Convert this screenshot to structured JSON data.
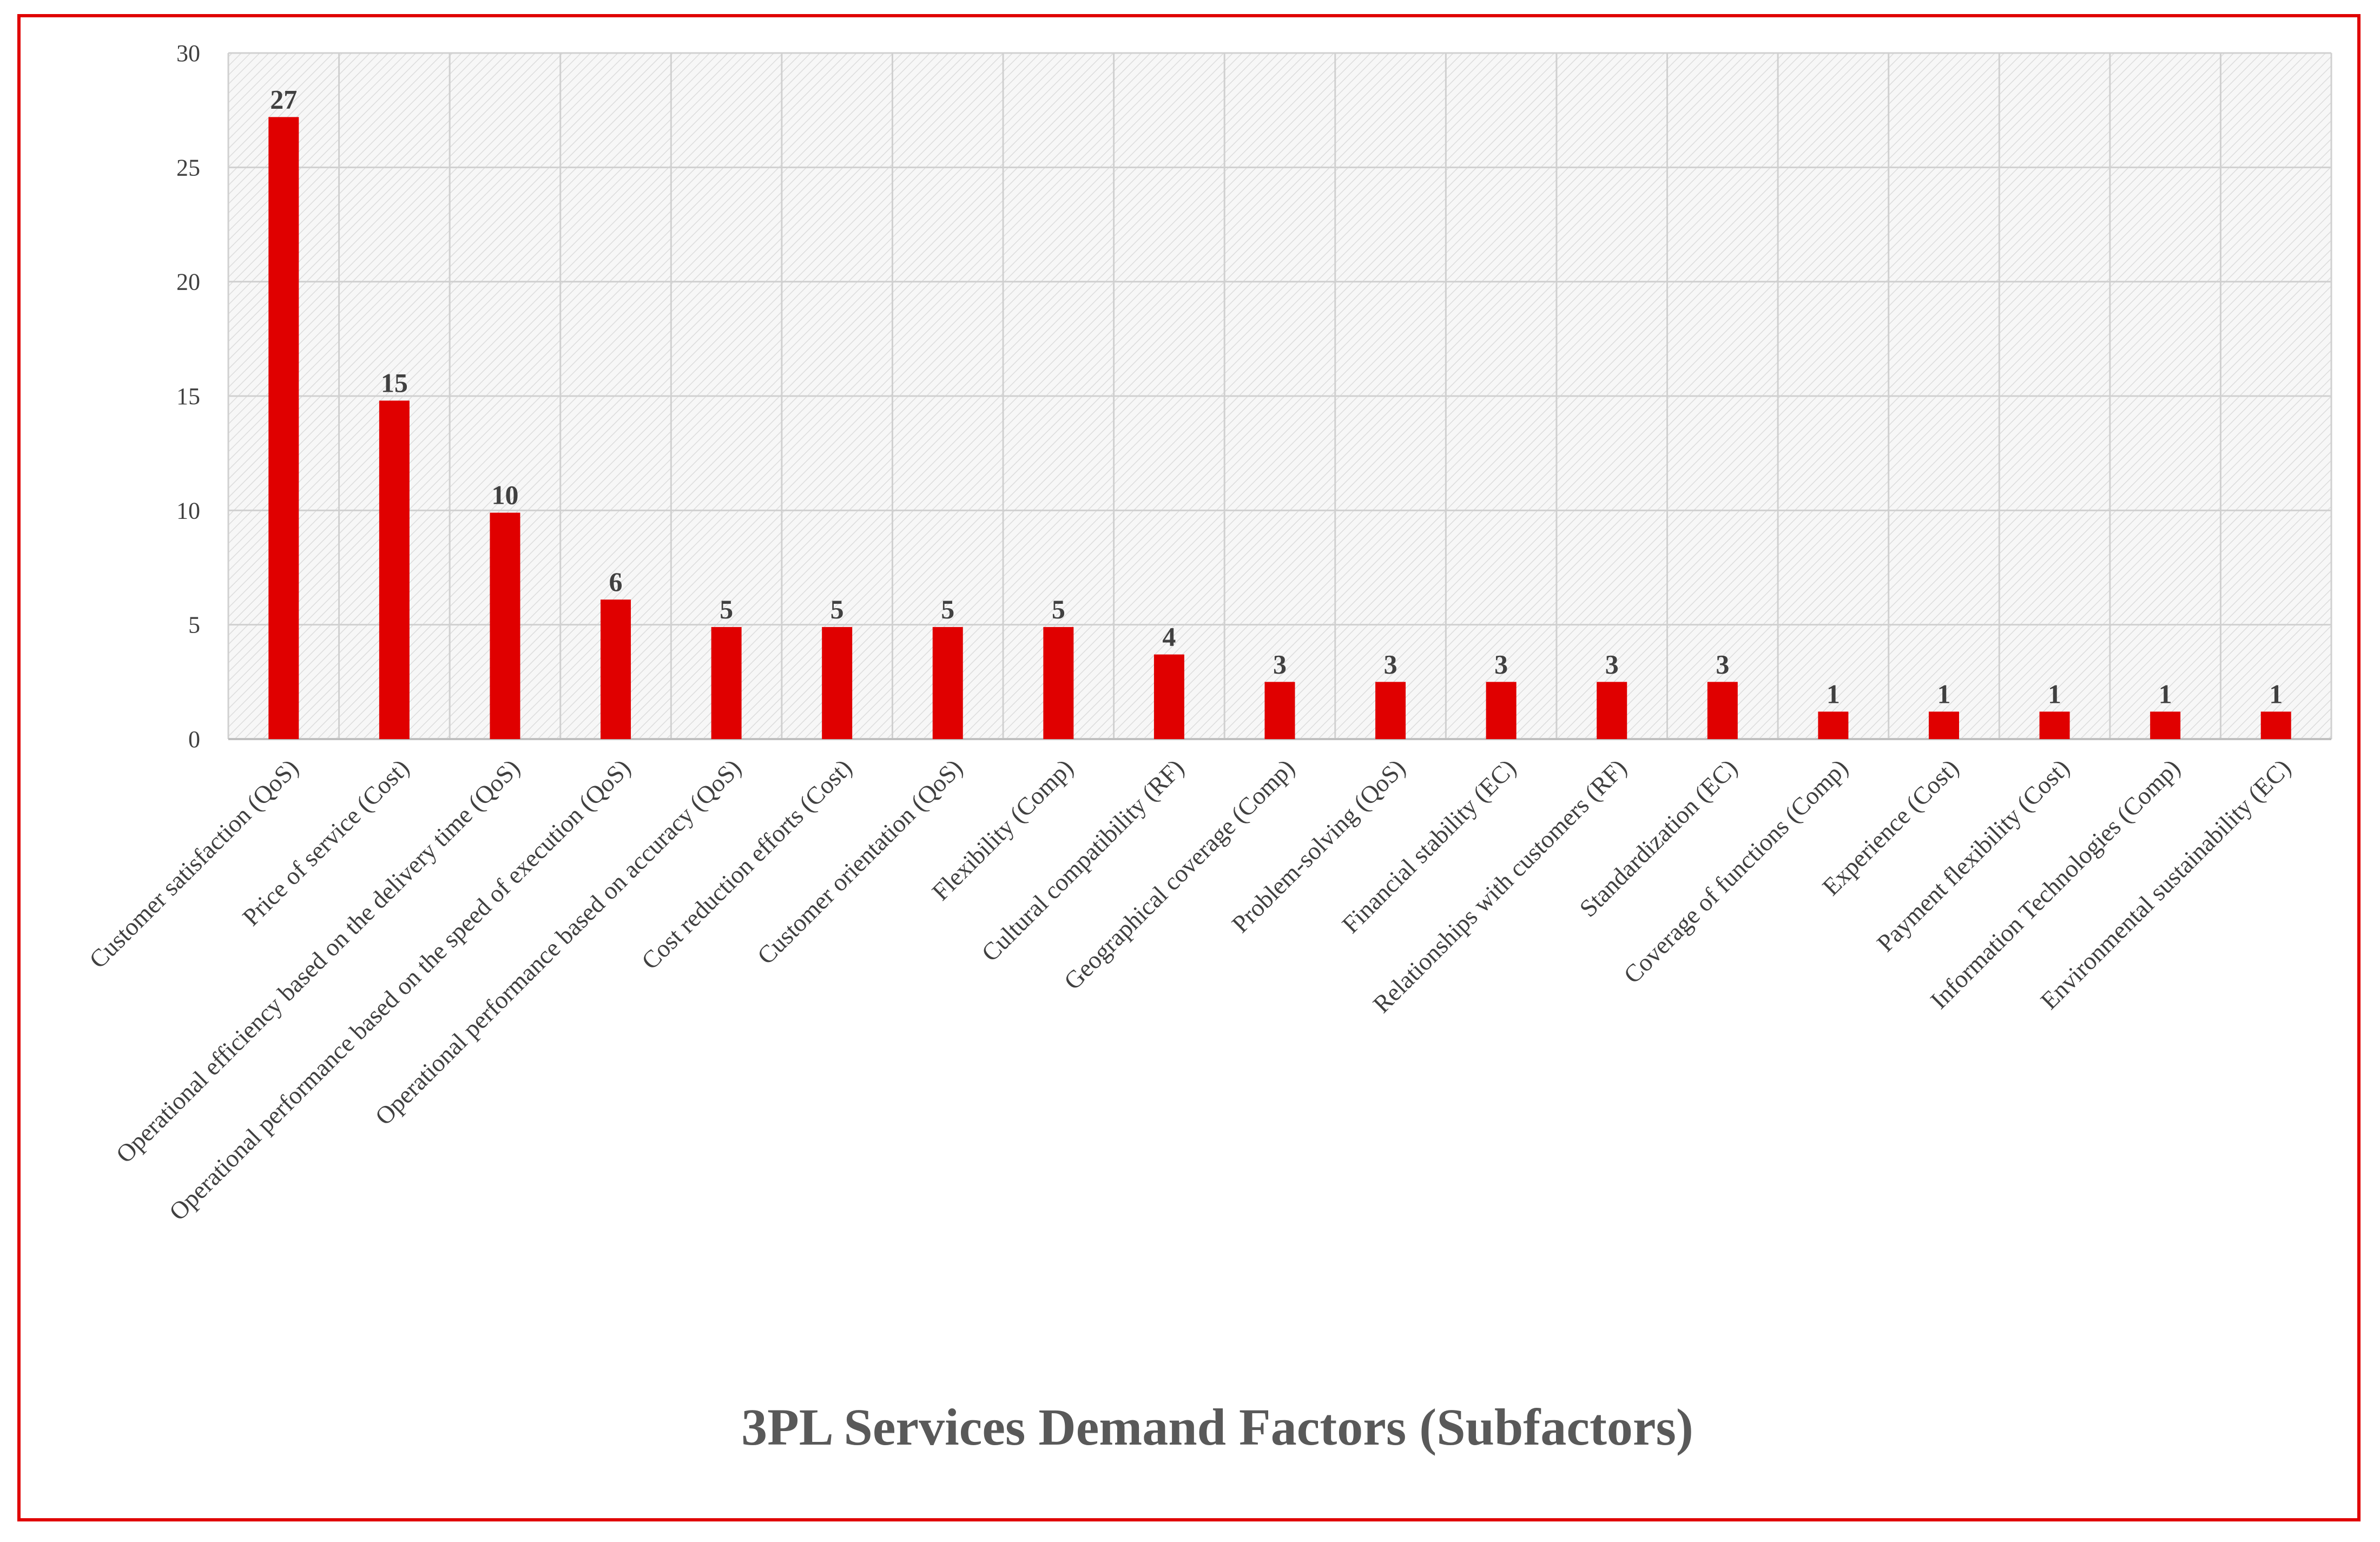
{
  "chart_data": {
    "type": "bar",
    "title": "3PL Services Demand Factors (Subfactors)",
    "xlabel": "",
    "ylabel": "",
    "ylim": [
      0,
      30
    ],
    "yticks": [
      0,
      5,
      10,
      15,
      20,
      25,
      30
    ],
    "grid": true,
    "legend": "none",
    "bar_color": "#e00000",
    "categories": [
      "Customer satisfaction (QoS)",
      "Price of service (Cost)",
      "Operational efficiency based on the delivery time (QoS)",
      "Operational performance based on the speed of execution (QoS)",
      "Operational performance based on accuracy (QoS)",
      "Cost reduction efforts (Cost)",
      "Customer orientation (QoS)",
      "Flexibility (Comp)",
      "Cultural compatibility (RF)",
      "Geographical coverage (Comp)",
      "Problem-solving (QoS)",
      "Financial stability (EC)",
      "Relationships with customers (RF)",
      "Standardization (EC)",
      "Coverage of functions (Comp)",
      "Experience (Cost)",
      "Payment flexibility (Cost)",
      "Information Technologies (Comp)",
      "Environmental sustainability (EC)"
    ],
    "values": [
      27.2,
      14.8,
      9.9,
      6.1,
      4.9,
      4.9,
      4.9,
      4.9,
      3.7,
      2.5,
      2.5,
      2.5,
      2.5,
      2.5,
      1.2,
      1.2,
      1.2,
      1.2,
      1.2
    ],
    "data_labels": [
      "27",
      "15",
      "10",
      "6",
      "5",
      "5",
      "5",
      "5",
      "4",
      "3",
      "3",
      "3",
      "3",
      "3",
      "1",
      "1",
      "1",
      "1",
      "1"
    ]
  }
}
